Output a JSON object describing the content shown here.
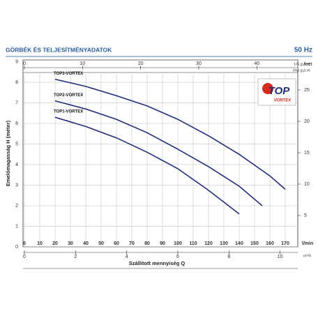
{
  "header": {
    "title": "GÖRBÉK ÉS TELJESÍTMÉNYADATOK",
    "frequency": "50 Hz"
  },
  "logo": {
    "brand": "TOP",
    "sub": "VORTEX"
  },
  "chart_data": {
    "type": "line",
    "ylabel": "Emelőmagasság H (méter)",
    "xlabel": "Szállított mennyiség Q",
    "x_unit": "l/min",
    "y2_unit": "feet",
    "xlim": [
      0,
      178
    ],
    "xticks": [
      0,
      10,
      20,
      30,
      40,
      50,
      60,
      70,
      80,
      90,
      100,
      110,
      120,
      130,
      140,
      150,
      160,
      170
    ],
    "ylim": [
      0,
      9
    ],
    "yticks": [
      0,
      1,
      2,
      3,
      4,
      5,
      6,
      7,
      8,
      9
    ],
    "y2lim": [
      0,
      29.5
    ],
    "y2ticks": [
      5,
      10,
      15,
      20,
      25
    ],
    "grid": true,
    "x_axis_m3h": {
      "unit": "m³/h",
      "lim": [
        0,
        10.68
      ],
      "ticks": [
        0,
        2,
        4,
        6,
        8,
        10
      ]
    },
    "x_axis_usgpm": {
      "unit": "US g.p.m.",
      "lim": [
        0,
        47
      ],
      "ticks": [
        0,
        10,
        20,
        30,
        40
      ]
    },
    "x_axis_impgpm": {
      "unit": "Imp g.p.m."
    },
    "series": [
      {
        "name": "TOP3-VORTEX",
        "color": "#1e2d78",
        "x": [
          20,
          40,
          60,
          80,
          100,
          120,
          140,
          160,
          170
        ],
        "values": [
          8.15,
          7.8,
          7.35,
          6.85,
          6.2,
          5.4,
          4.5,
          3.45,
          2.8
        ]
      },
      {
        "name": "TOP2-VORTEX",
        "color": "#1e2d78",
        "x": [
          20,
          40,
          60,
          80,
          100,
          120,
          140,
          155
        ],
        "values": [
          7.1,
          6.7,
          6.2,
          5.55,
          4.75,
          3.9,
          2.95,
          2.0
        ]
      },
      {
        "name": "TOP1-VORTEX",
        "color": "#1e2d78",
        "x": [
          20,
          40,
          60,
          80,
          100,
          120,
          140
        ],
        "values": [
          6.3,
          5.85,
          5.3,
          4.6,
          3.8,
          2.75,
          1.6
        ]
      }
    ]
  }
}
